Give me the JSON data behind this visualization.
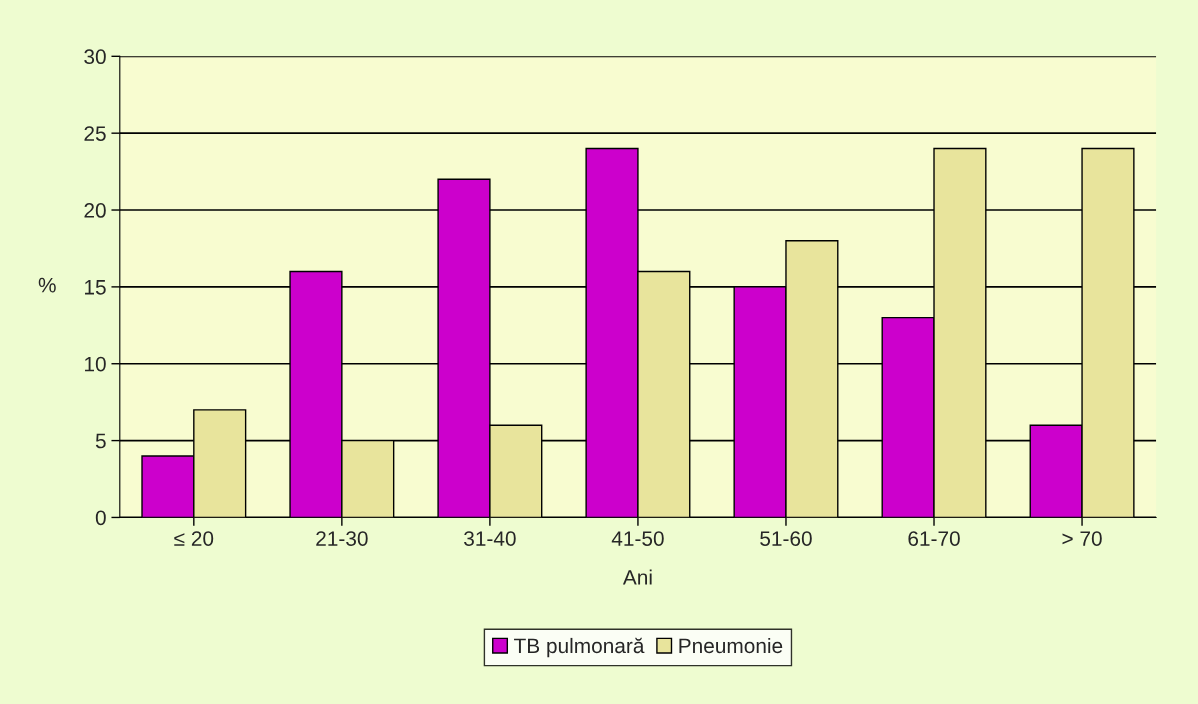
{
  "chart_data": {
    "type": "bar",
    "xlabel": "Ani",
    "ylabel": "%",
    "categories": [
      "≤ 20",
      "21-30",
      "31-40",
      "41-50",
      "51-60",
      "61-70",
      "> 70"
    ],
    "series": [
      {
        "name": "TB pulmonară",
        "color": "#cc00cc",
        "values": [
          4,
          16,
          22,
          24,
          15,
          13,
          6
        ]
      },
      {
        "name": "Pneumonie",
        "color": "#e8e49c",
        "values": [
          7,
          5,
          6,
          16,
          18,
          24,
          24
        ]
      }
    ],
    "ylim": [
      0,
      30
    ],
    "yticks": [
      0,
      5,
      10,
      15,
      20,
      25,
      30
    ],
    "grid": "y",
    "legend": "bottom"
  }
}
